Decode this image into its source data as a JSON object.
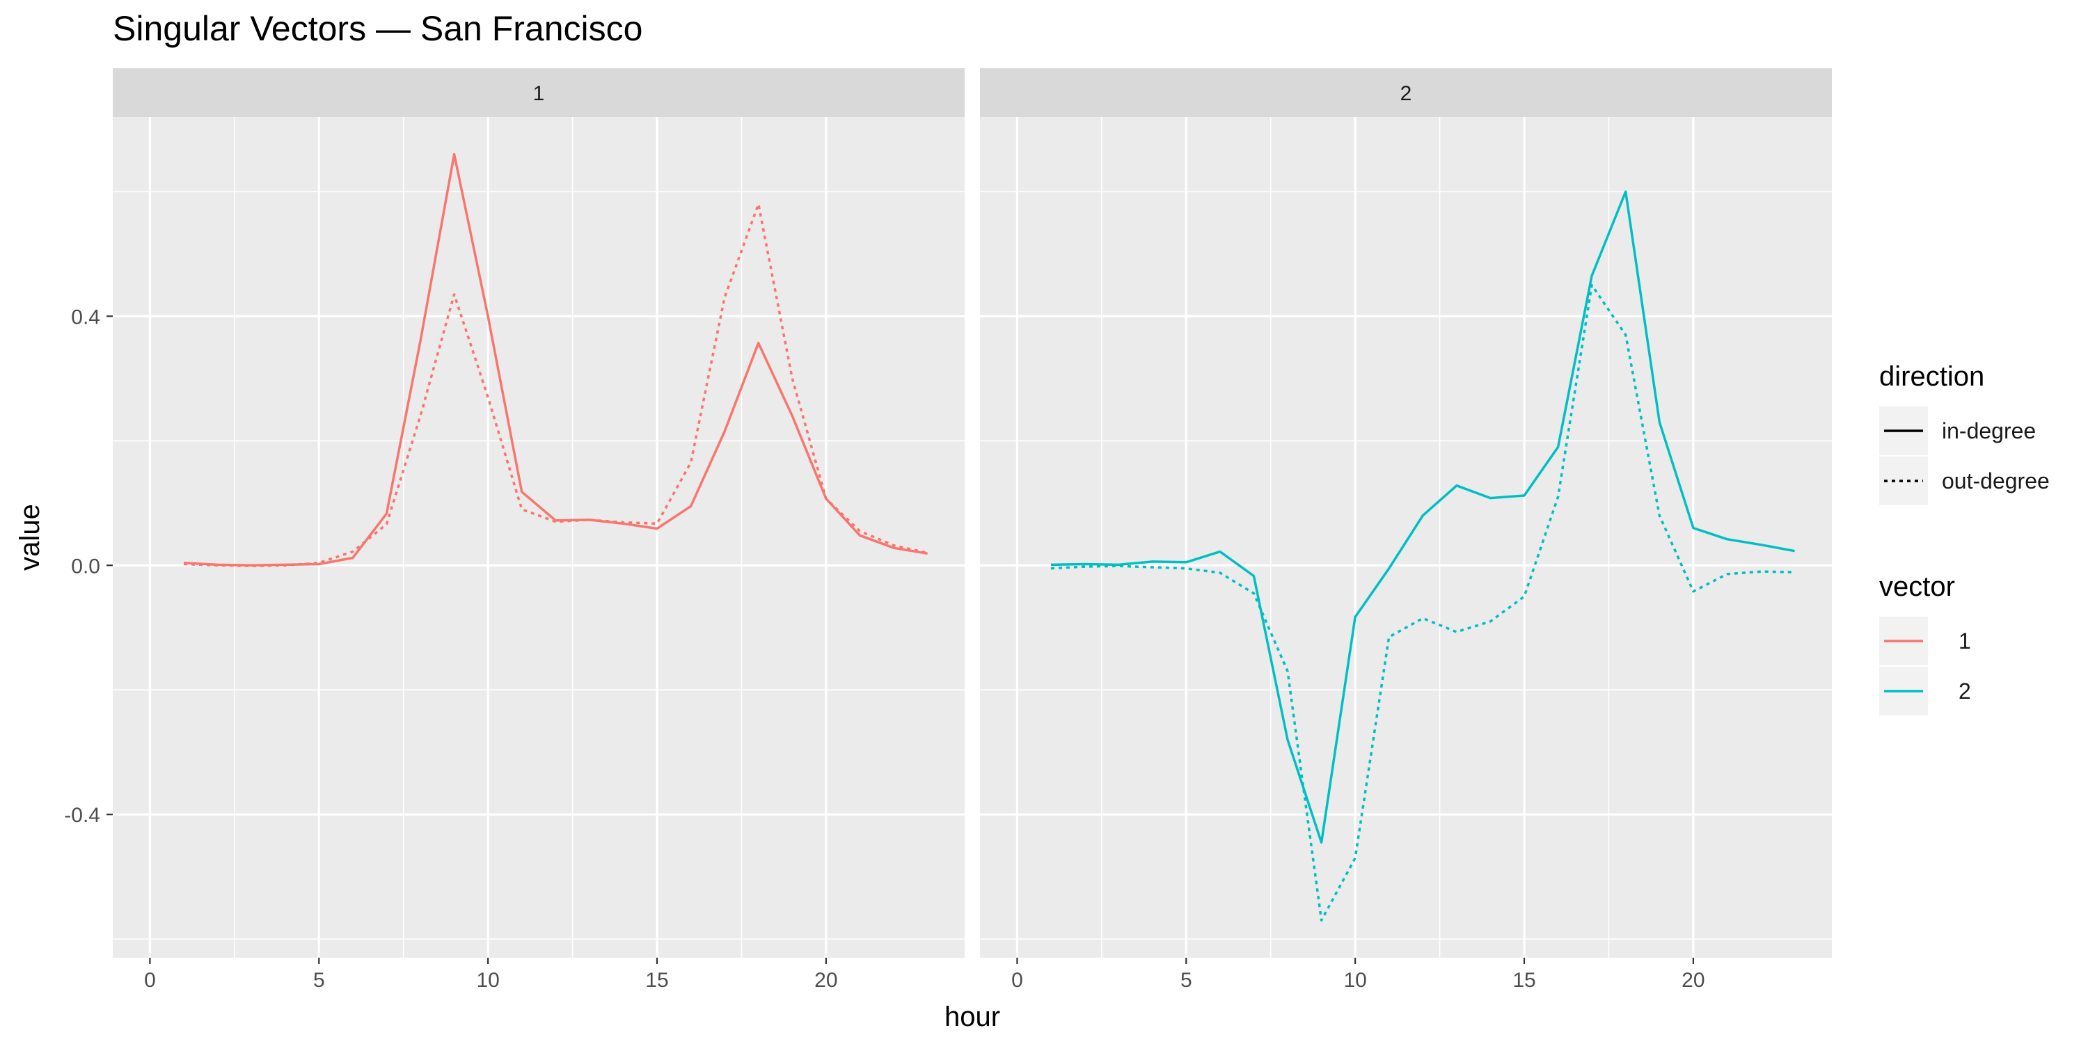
{
  "chart_data": {
    "type": "line",
    "title": "Singular Vectors — San Francisco",
    "xlabel": "hour",
    "ylabel": "value",
    "facets": [
      "1",
      "2"
    ],
    "x": [
      1,
      2,
      3,
      4,
      5,
      6,
      7,
      8,
      9,
      10,
      11,
      12,
      13,
      14,
      15,
      16,
      17,
      18,
      19,
      20,
      21,
      22,
      23
    ],
    "x_ticks": [
      0,
      5,
      10,
      15,
      20
    ],
    "x_tick_labels": [
      "0",
      "5",
      "10",
      "15",
      "20"
    ],
    "xlim": [
      -1.1,
      24.1
    ],
    "y_ticks": [
      -0.4,
      0.0,
      0.4
    ],
    "y_tick_labels": [
      "-0.4",
      "0.0",
      "0.4"
    ],
    "ylim": [
      -0.63,
      0.72
    ],
    "grid": true,
    "legend_position": "right",
    "legends": [
      {
        "title": "direction",
        "items": [
          {
            "label": "in-degree",
            "dash": "solid"
          },
          {
            "label": "out-degree",
            "dash": "dotted"
          }
        ]
      },
      {
        "title": "vector",
        "items": [
          {
            "label": "1",
            "color": "#F8766D"
          },
          {
            "label": "2",
            "color": "#00BFC4"
          }
        ]
      }
    ],
    "series": [
      {
        "facet": "1",
        "vector": "1",
        "direction": "in-degree",
        "color": "#F8766D",
        "dash": "solid",
        "values": [
          0.004,
          0.001,
          0.0,
          0.001,
          0.002,
          0.012,
          0.083,
          0.36,
          0.66,
          0.4,
          0.118,
          0.072,
          0.073,
          0.067,
          0.059,
          0.095,
          0.215,
          0.357,
          0.24,
          0.107,
          0.048,
          0.028,
          0.019
        ]
      },
      {
        "facet": "1",
        "vector": "1",
        "direction": "out-degree",
        "color": "#F8766D",
        "dash": "dotted",
        "values": [
          0.002,
          0.0,
          -0.001,
          0.0,
          0.004,
          0.022,
          0.066,
          0.24,
          0.435,
          0.27,
          0.09,
          0.07,
          0.073,
          0.069,
          0.067,
          0.165,
          0.43,
          0.58,
          0.3,
          0.107,
          0.055,
          0.032,
          0.02
        ]
      },
      {
        "facet": "2",
        "vector": "2",
        "direction": "in-degree",
        "color": "#00BFC4",
        "dash": "solid",
        "values": [
          0.001,
          0.002,
          0.001,
          0.006,
          0.005,
          0.022,
          -0.017,
          -0.28,
          -0.445,
          -0.083,
          -0.005,
          0.08,
          0.128,
          0.108,
          0.112,
          0.19,
          0.465,
          0.6,
          0.23,
          0.06,
          0.042,
          0.033,
          0.023
        ]
      },
      {
        "facet": "2",
        "vector": "2",
        "direction": "out-degree",
        "color": "#00BFC4",
        "dash": "dotted",
        "values": [
          -0.005,
          -0.002,
          -0.001,
          -0.003,
          -0.005,
          -0.012,
          -0.045,
          -0.17,
          -0.57,
          -0.47,
          -0.115,
          -0.085,
          -0.107,
          -0.09,
          -0.05,
          0.11,
          0.45,
          0.37,
          0.08,
          -0.042,
          -0.014,
          -0.01,
          -0.011
        ]
      }
    ]
  }
}
